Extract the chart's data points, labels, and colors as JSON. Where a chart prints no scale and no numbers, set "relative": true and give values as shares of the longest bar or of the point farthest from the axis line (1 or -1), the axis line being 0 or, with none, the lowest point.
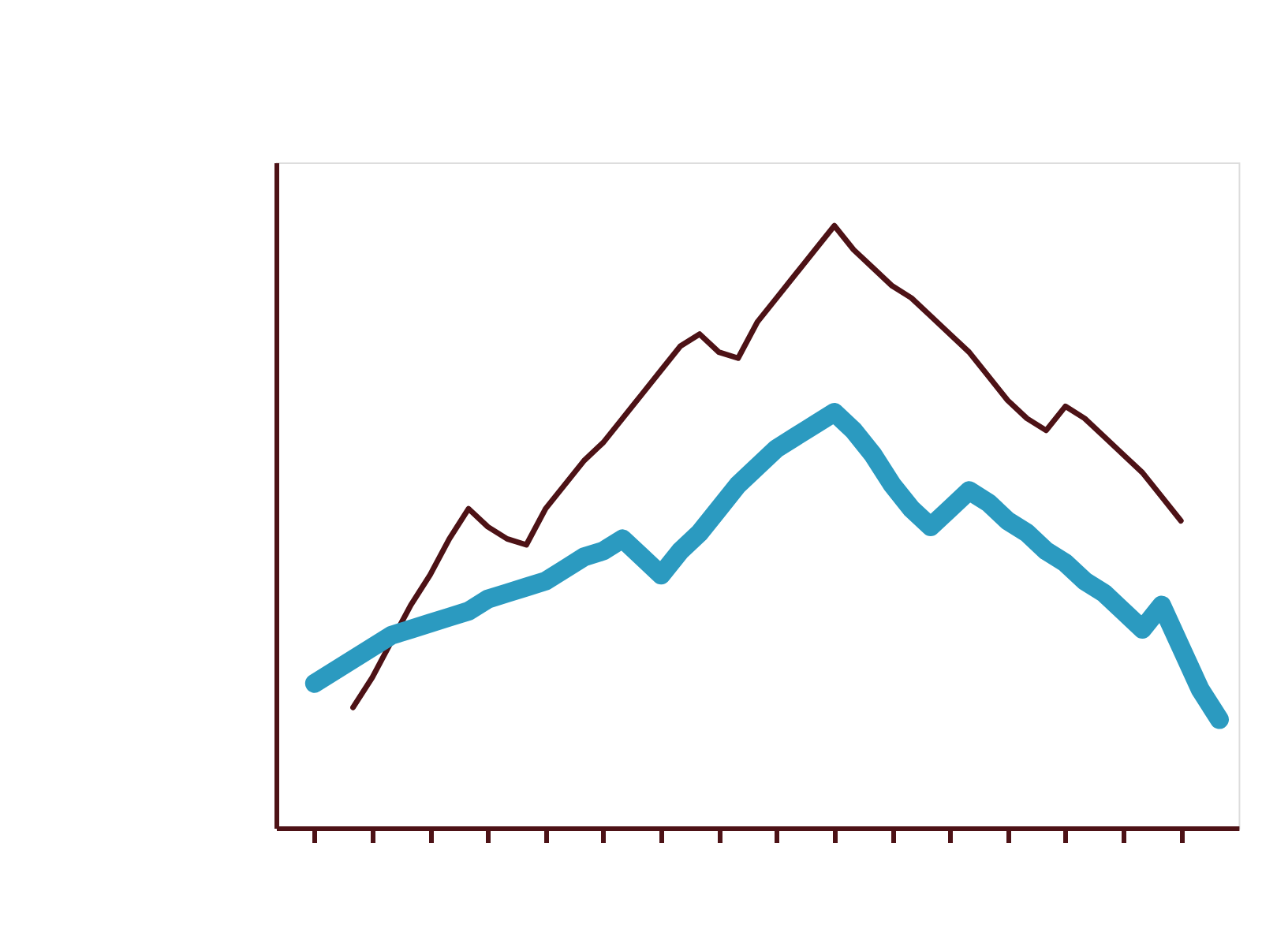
{
  "chart_data": {
    "type": "line",
    "relative": true,
    "categories": [
      null,
      null,
      null,
      null,
      null,
      null,
      null,
      null,
      null,
      null,
      null,
      null,
      null,
      null,
      null,
      null,
      null,
      null,
      null,
      null,
      null,
      null,
      null,
      null,
      null,
      null,
      null,
      null,
      null,
      null,
      null,
      null,
      null,
      null,
      null,
      null,
      null,
      null,
      null,
      null,
      null,
      null,
      null,
      null,
      null,
      null,
      null,
      null,
      null
    ],
    "series": [
      {
        "color": "#4d1216",
        "values": [
          null,
          null,
          null,
          0.2,
          0.25,
          0.31,
          0.37,
          0.42,
          0.48,
          0.53,
          0.5,
          0.48,
          0.47,
          0.53,
          0.57,
          0.61,
          0.64,
          0.68,
          0.72,
          0.76,
          0.8,
          0.82,
          0.79,
          0.78,
          0.84,
          0.88,
          0.92,
          0.96,
          1.0,
          0.96,
          0.93,
          0.9,
          0.88,
          0.85,
          0.82,
          0.79,
          0.75,
          0.71,
          0.68,
          0.66,
          0.7,
          0.68,
          0.65,
          0.62,
          0.59,
          0.55,
          0.51,
          null,
          null
        ]
      },
      {
        "color": "#2b9ac0",
        "values": [
          null,
          0.24,
          0.26,
          0.28,
          0.3,
          0.32,
          0.33,
          0.34,
          0.35,
          0.36,
          0.38,
          0.39,
          0.4,
          0.41,
          0.43,
          0.45,
          0.46,
          0.48,
          0.45,
          0.42,
          0.46,
          0.49,
          0.53,
          0.57,
          0.6,
          0.63,
          0.65,
          0.67,
          0.69,
          0.66,
          0.62,
          0.57,
          0.53,
          0.5,
          0.53,
          0.56,
          0.54,
          0.51,
          0.49,
          0.46,
          0.44,
          0.41,
          0.39,
          0.36,
          0.33,
          0.37,
          0.3,
          0.23,
          0.18
        ]
      }
    ]
  }
}
